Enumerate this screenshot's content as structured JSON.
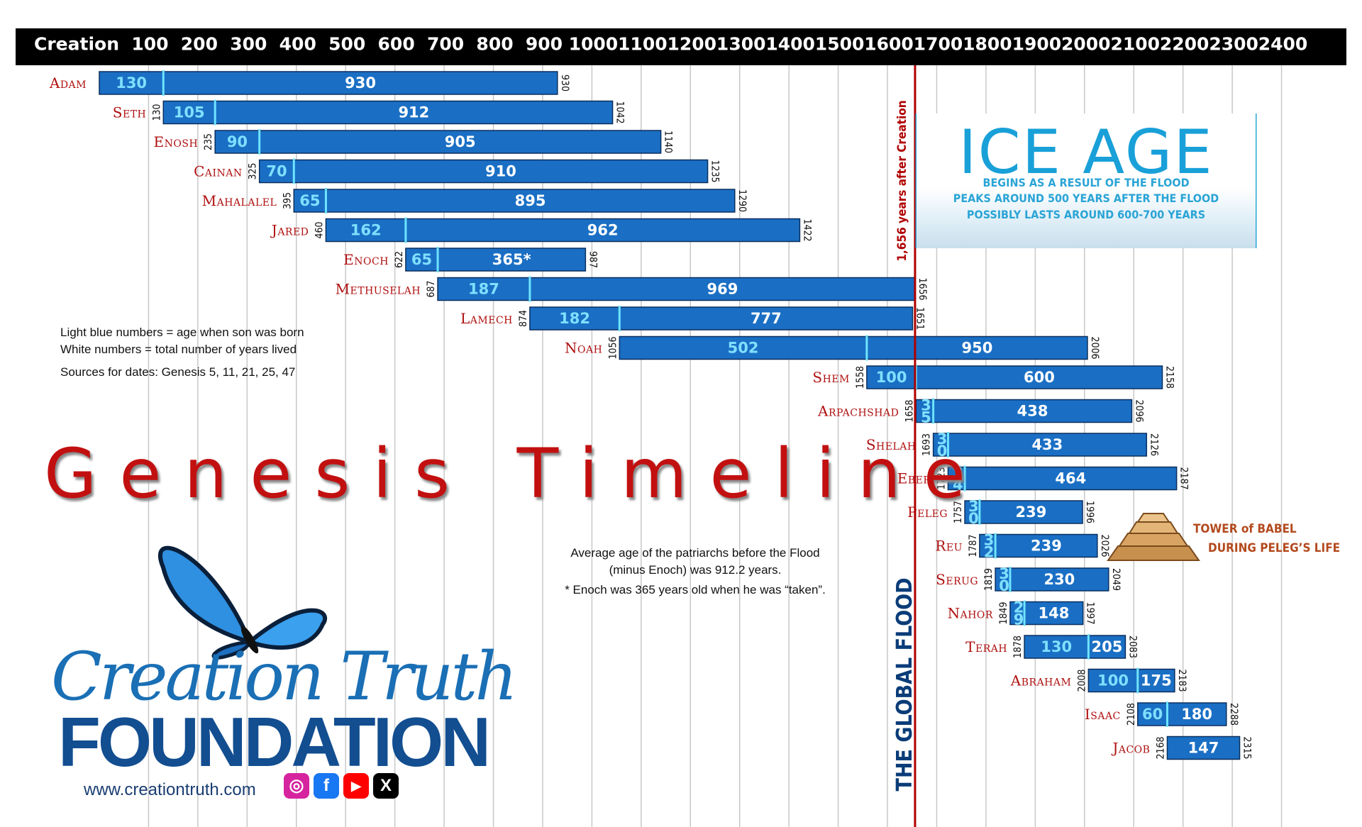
{
  "chart_data": {
    "type": "bar",
    "title": "Genesis Timeline",
    "x_ticks": [
      "Creation",
      "100",
      "200",
      "300",
      "400",
      "500",
      "600",
      "700",
      "800",
      "900",
      "1000",
      "1100",
      "1200",
      "1300",
      "1400",
      "1500",
      "1600",
      "1700",
      "1800",
      "1900",
      "2000",
      "2100",
      "2200",
      "2300",
      "2400"
    ],
    "xlim": [
      0,
      2400
    ],
    "grid": true,
    "flood_year": 1656,
    "flood_caption": "1,656 years after Creation",
    "flood_label": "THE GLOBAL FLOOD",
    "patriarchs": [
      {
        "name": "Adam",
        "born": 0,
        "died": 930,
        "age_at_son": 130,
        "lifespan": 930,
        "born_label": "",
        "died_label": "930",
        "son_label": "130"
      },
      {
        "name": "Seth",
        "born": 130,
        "died": 1042,
        "age_at_son": 105,
        "lifespan": 912,
        "born_label": "130",
        "died_label": "1042",
        "son_label": "105"
      },
      {
        "name": "Enosh",
        "born": 235,
        "died": 1140,
        "age_at_son": 90,
        "lifespan": 905,
        "born_label": "235",
        "died_label": "1140",
        "son_label": "90"
      },
      {
        "name": "Cainan",
        "born": 325,
        "died": 1235,
        "age_at_son": 70,
        "lifespan": 910,
        "born_label": "325",
        "died_label": "1235",
        "son_label": "70"
      },
      {
        "name": "Mahalalel",
        "born": 395,
        "died": 1290,
        "age_at_son": 65,
        "lifespan": 895,
        "born_label": "395",
        "died_label": "1290",
        "son_label": "65"
      },
      {
        "name": "Jared",
        "born": 460,
        "died": 1422,
        "age_at_son": 162,
        "lifespan": 962,
        "born_label": "460",
        "died_label": "1422",
        "son_label": "162"
      },
      {
        "name": "Enoch",
        "born": 622,
        "died": 987,
        "age_at_son": 65,
        "lifespan": 365,
        "born_label": "622",
        "died_label": "987",
        "son_label": "65",
        "lifespan_label": "365*"
      },
      {
        "name": "Methuselah",
        "born": 687,
        "died": 1656,
        "age_at_son": 187,
        "lifespan": 969,
        "born_label": "687",
        "died_label": "1656",
        "son_label": "187"
      },
      {
        "name": "Lamech",
        "born": 874,
        "died": 1651,
        "age_at_son": 182,
        "lifespan": 777,
        "born_label": "874",
        "died_label": "1651",
        "son_label": "182"
      },
      {
        "name": "Noah",
        "born": 1056,
        "died": 2006,
        "age_at_son": 502,
        "lifespan": 950,
        "born_label": "1056",
        "died_label": "2006",
        "son_label": "502"
      },
      {
        "name": "Shem",
        "born": 1558,
        "died": 2158,
        "age_at_son": 100,
        "lifespan": 600,
        "born_label": "1558",
        "died_label": "2158",
        "son_label": "100"
      },
      {
        "name": "Arpachshad",
        "born": 1658,
        "died": 2096,
        "age_at_son": 35,
        "lifespan": 438,
        "born_label": "1658",
        "died_label": "2096",
        "son_label": "35"
      },
      {
        "name": "Shelah",
        "born": 1693,
        "died": 2126,
        "age_at_son": 30,
        "lifespan": 433,
        "born_label": "1693",
        "died_label": "2126",
        "son_label": "30"
      },
      {
        "name": "Eber",
        "born": 1723,
        "died": 2187,
        "age_at_son": 34,
        "lifespan": 464,
        "born_label": "1723",
        "died_label": "2187",
        "son_label": "34"
      },
      {
        "name": "Peleg",
        "born": 1757,
        "died": 1996,
        "age_at_son": 30,
        "lifespan": 239,
        "born_label": "1757",
        "died_label": "1996",
        "son_label": "30"
      },
      {
        "name": "Reu",
        "born": 1787,
        "died": 2026,
        "age_at_son": 32,
        "lifespan": 239,
        "born_label": "1787",
        "died_label": "2026",
        "son_label": "32"
      },
      {
        "name": "Serug",
        "born": 1819,
        "died": 2049,
        "age_at_son": 30,
        "lifespan": 230,
        "born_label": "1819",
        "died_label": "2049",
        "son_label": "30"
      },
      {
        "name": "Nahor",
        "born": 1849,
        "died": 1997,
        "age_at_son": 29,
        "lifespan": 148,
        "born_label": "1849",
        "died_label": "1997",
        "son_label": "29"
      },
      {
        "name": "Terah",
        "born": 1878,
        "died": 2083,
        "age_at_son": 130,
        "lifespan": 205,
        "born_label": "1878",
        "died_label": "2083",
        "son_label": "130"
      },
      {
        "name": "Abraham",
        "born": 2008,
        "died": 2183,
        "age_at_son": 100,
        "lifespan": 175,
        "born_label": "2008",
        "died_label": "2183",
        "son_label": "100"
      },
      {
        "name": "Isaac",
        "born": 2108,
        "died": 2288,
        "age_at_son": 60,
        "lifespan": 180,
        "born_label": "2108",
        "died_label": "2288",
        "son_label": "60"
      },
      {
        "name": "Jacob",
        "born": 2168,
        "died": 2315,
        "age_at_son": null,
        "lifespan": 147,
        "born_label": "2168",
        "died_label": "2315",
        "son_label": ""
      }
    ],
    "colors": {
      "bar": "#1a6fc4",
      "bar_border": "#0b2f5e",
      "son_text": "#7fe0ff",
      "son_divider": "#6fe4ff",
      "life_text": "#ffffff",
      "header": "#000000",
      "name": "#b01010",
      "flood_line": "#b00000",
      "grid": "#c8c8c8"
    }
  },
  "legend": {
    "line1": "Light blue numbers = age when son was born",
    "line2": "White numbers = total number of years lived",
    "line3": "Sources for dates: Genesis 5, 11, 21, 25, 47"
  },
  "title_text": "Genesis Timeline",
  "average": {
    "line1": "Average age of the patriarchs before the Flood",
    "line2": "(minus Enoch) was 912.2 years.",
    "line3": "* Enoch was 365 years old when he was “taken”."
  },
  "ice_age": {
    "title": "ICE AGE",
    "line1": "BEGINS AS A RESULT OF THE FLOOD",
    "line2": "PEAKS AROUND 500 YEARS AFTER THE FLOOD",
    "line3": "POSSIBLY LASTS AROUND 600-700 YEARS"
  },
  "babel": {
    "line1": "TOWER of BABEL",
    "line2": "DURING PELEG’S LIFE"
  },
  "logo": {
    "line1": "Creation Truth",
    "line2": "FOUNDATION",
    "url": "www.creationtruth.com",
    "registered": "®"
  }
}
